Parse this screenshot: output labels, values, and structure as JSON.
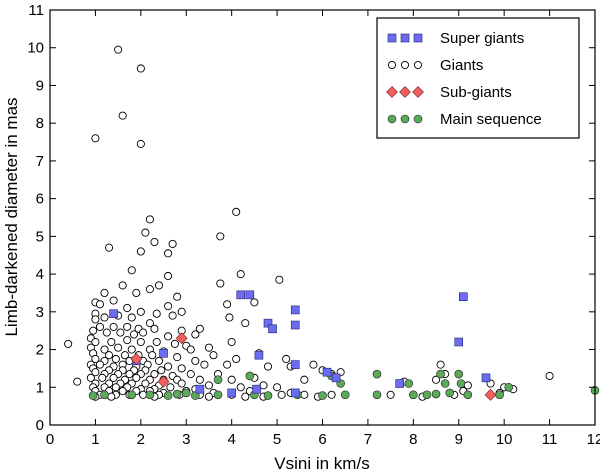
{
  "chart_data": {
    "type": "scatter",
    "title": "",
    "xlabel": "Vsini in km/s",
    "ylabel": "Limb-darkened diameter in mas",
    "xlim": [
      0,
      12
    ],
    "ylim": [
      0,
      11
    ],
    "xticks": [
      "0",
      "1",
      "2",
      "3",
      "4",
      "5",
      "6",
      "7",
      "8",
      "9",
      "10",
      "11",
      "12"
    ],
    "yticks": [
      "0",
      "1",
      "2",
      "3",
      "4",
      "5",
      "6",
      "7",
      "8",
      "9",
      "10",
      "11"
    ],
    "grid": false,
    "legend_position": "top-right",
    "series": [
      {
        "name": "Giants",
        "marker": "circle-open",
        "color": "#000000",
        "points": [
          [
            1.5,
            9.95
          ],
          [
            2.0,
            9.45
          ],
          [
            1.6,
            8.2
          ],
          [
            1.0,
            7.6
          ],
          [
            2.0,
            7.45
          ],
          [
            2.2,
            5.45
          ],
          [
            4.1,
            5.65
          ],
          [
            2.1,
            5.1
          ],
          [
            3.75,
            5.0
          ],
          [
            2.3,
            4.85
          ],
          [
            2.7,
            4.8
          ],
          [
            1.3,
            4.7
          ],
          [
            2.0,
            4.6
          ],
          [
            2.6,
            4.55
          ],
          [
            1.8,
            4.1
          ],
          [
            4.2,
            4.0
          ],
          [
            2.6,
            3.95
          ],
          [
            5.05,
            3.85
          ],
          [
            2.4,
            3.7
          ],
          [
            1.6,
            3.7
          ],
          [
            3.75,
            3.75
          ],
          [
            2.2,
            3.6
          ],
          [
            1.9,
            3.5
          ],
          [
            1.2,
            3.5
          ],
          [
            2.8,
            3.4
          ],
          [
            1.4,
            3.3
          ],
          [
            1.0,
            3.25
          ],
          [
            1.1,
            3.2
          ],
          [
            2.6,
            3.15
          ],
          [
            4.5,
            3.25
          ],
          [
            3.9,
            3.2
          ],
          [
            1.7,
            3.1
          ],
          [
            2.0,
            3.0
          ],
          [
            2.35,
            2.95
          ],
          [
            2.9,
            3.0
          ],
          [
            1.0,
            2.95
          ],
          [
            1.5,
            2.9
          ],
          [
            2.7,
            2.9
          ],
          [
            1.2,
            2.85
          ],
          [
            1.8,
            2.85
          ],
          [
            3.95,
            2.85
          ],
          [
            1.0,
            2.8
          ],
          [
            2.2,
            2.7
          ],
          [
            4.3,
            2.7
          ],
          [
            1.1,
            2.6
          ],
          [
            1.4,
            2.6
          ],
          [
            1.7,
            2.6
          ],
          [
            1.95,
            2.55
          ],
          [
            2.3,
            2.55
          ],
          [
            2.9,
            2.5
          ],
          [
            3.3,
            2.55
          ],
          [
            0.95,
            2.5
          ],
          [
            1.25,
            2.45
          ],
          [
            1.55,
            2.45
          ],
          [
            1.85,
            2.4
          ],
          [
            2.05,
            2.45
          ],
          [
            2.6,
            2.35
          ],
          [
            3.2,
            2.4
          ],
          [
            0.9,
            2.3
          ],
          [
            1.0,
            2.2
          ],
          [
            1.35,
            2.2
          ],
          [
            1.7,
            2.25
          ],
          [
            2.0,
            2.2
          ],
          [
            2.35,
            2.2
          ],
          [
            2.75,
            2.15
          ],
          [
            3.0,
            2.1
          ],
          [
            4.0,
            2.2
          ],
          [
            0.4,
            2.15
          ],
          [
            0.9,
            2.05
          ],
          [
            1.2,
            2.0
          ],
          [
            1.5,
            2.05
          ],
          [
            1.8,
            2.0
          ],
          [
            2.2,
            2.0
          ],
          [
            2.5,
            1.95
          ],
          [
            3.1,
            2.0
          ],
          [
            3.5,
            2.05
          ],
          [
            3.6,
            1.85
          ],
          [
            0.95,
            1.9
          ],
          [
            1.3,
            1.85
          ],
          [
            1.65,
            1.85
          ],
          [
            1.95,
            1.85
          ],
          [
            2.25,
            1.85
          ],
          [
            2.8,
            1.8
          ],
          [
            4.6,
            1.9
          ],
          [
            1.0,
            1.75
          ],
          [
            1.2,
            1.7
          ],
          [
            1.45,
            1.75
          ],
          [
            1.75,
            1.7
          ],
          [
            2.05,
            1.7
          ],
          [
            2.4,
            1.7
          ],
          [
            3.2,
            1.7
          ],
          [
            4.1,
            1.75
          ],
          [
            5.2,
            1.75
          ],
          [
            0.9,
            1.6
          ],
          [
            1.1,
            1.6
          ],
          [
            1.4,
            1.55
          ],
          [
            1.6,
            1.6
          ],
          [
            1.9,
            1.55
          ],
          [
            2.15,
            1.6
          ],
          [
            2.6,
            1.55
          ],
          [
            3.4,
            1.6
          ],
          [
            3.9,
            1.6
          ],
          [
            5.8,
            1.6
          ],
          [
            0.95,
            1.5
          ],
          [
            1.3,
            1.45
          ],
          [
            1.6,
            1.45
          ],
          [
            1.85,
            1.45
          ],
          [
            2.1,
            1.45
          ],
          [
            2.45,
            1.45
          ],
          [
            2.9,
            1.5
          ],
          [
            4.8,
            1.55
          ],
          [
            5.3,
            1.55
          ],
          [
            6.0,
            1.45
          ],
          [
            6.4,
            1.4
          ],
          [
            8.6,
            1.6
          ],
          [
            1.0,
            1.4
          ],
          [
            1.2,
            1.35
          ],
          [
            1.5,
            1.35
          ],
          [
            1.75,
            1.35
          ],
          [
            2.0,
            1.35
          ],
          [
            2.3,
            1.35
          ],
          [
            2.7,
            1.3
          ],
          [
            3.1,
            1.35
          ],
          [
            3.7,
            1.35
          ],
          [
            4.4,
            1.3
          ],
          [
            6.2,
            1.35
          ],
          [
            8.7,
            1.35
          ],
          [
            11.0,
            1.3
          ],
          [
            0.9,
            1.25
          ],
          [
            1.15,
            1.25
          ],
          [
            1.4,
            1.25
          ],
          [
            1.65,
            1.2
          ],
          [
            1.9,
            1.25
          ],
          [
            2.2,
            1.2
          ],
          [
            2.5,
            1.2
          ],
          [
            2.8,
            1.2
          ],
          [
            3.3,
            1.2
          ],
          [
            4.0,
            1.2
          ],
          [
            4.5,
            1.25
          ],
          [
            5.6,
            1.2
          ],
          [
            8.5,
            1.2
          ],
          [
            0.6,
            1.15
          ],
          [
            1.0,
            1.1
          ],
          [
            1.3,
            1.1
          ],
          [
            1.55,
            1.1
          ],
          [
            1.8,
            1.1
          ],
          [
            2.1,
            1.1
          ],
          [
            2.4,
            1.05
          ],
          [
            2.9,
            1.1
          ],
          [
            3.5,
            1.05
          ],
          [
            4.7,
            1.05
          ],
          [
            7.8,
            1.15
          ],
          [
            9.7,
            1.1
          ],
          [
            0.95,
            1.0
          ],
          [
            1.2,
            1.0
          ],
          [
            1.45,
            1.0
          ],
          [
            1.7,
            1.0
          ],
          [
            2.0,
            0.95
          ],
          [
            2.3,
            0.95
          ],
          [
            2.65,
            1.0
          ],
          [
            3.2,
            0.95
          ],
          [
            4.2,
            1.0
          ],
          [
            5.0,
            1.0
          ],
          [
            9.2,
            1.05
          ],
          [
            10.0,
            1.0
          ],
          [
            10.2,
            0.95
          ],
          [
            1.0,
            0.9
          ],
          [
            1.3,
            0.9
          ],
          [
            1.6,
            0.9
          ],
          [
            1.9,
            0.9
          ],
          [
            2.2,
            0.9
          ],
          [
            2.5,
            0.85
          ],
          [
            3.0,
            0.9
          ],
          [
            3.6,
            0.85
          ],
          [
            4.4,
            0.9
          ],
          [
            5.3,
            0.85
          ],
          [
            9.1,
            0.9
          ],
          [
            1.1,
            0.8
          ],
          [
            1.45,
            0.8
          ],
          [
            1.75,
            0.8
          ],
          [
            2.05,
            0.8
          ],
          [
            2.4,
            0.8
          ],
          [
            2.85,
            0.8
          ],
          [
            3.3,
            0.8
          ],
          [
            4.0,
            0.8
          ],
          [
            4.3,
            0.75
          ],
          [
            4.7,
            0.75
          ],
          [
            5.1,
            0.8
          ],
          [
            5.6,
            0.8
          ],
          [
            6.2,
            0.8
          ],
          [
            7.5,
            0.8
          ],
          [
            8.2,
            0.75
          ],
          [
            8.9,
            0.8
          ],
          [
            9.9,
            0.85
          ],
          [
            1.0,
            0.75
          ],
          [
            1.35,
            0.75
          ],
          [
            2.3,
            0.75
          ],
          [
            3.5,
            0.75
          ],
          [
            5.9,
            0.75
          ]
        ]
      },
      {
        "name": "Main sequence",
        "marker": "circle-filled",
        "color": "#5aaa5a",
        "points": [
          [
            0.95,
            0.78
          ],
          [
            1.2,
            0.8
          ],
          [
            1.8,
            0.8
          ],
          [
            2.2,
            0.8
          ],
          [
            2.6,
            0.78
          ],
          [
            2.8,
            0.82
          ],
          [
            3.0,
            0.85
          ],
          [
            3.2,
            0.78
          ],
          [
            3.7,
            0.8
          ],
          [
            3.7,
            1.2
          ],
          [
            4.4,
            1.3
          ],
          [
            4.5,
            0.8
          ],
          [
            4.8,
            0.78
          ],
          [
            5.45,
            0.8
          ],
          [
            6.0,
            0.78
          ],
          [
            6.2,
            1.3
          ],
          [
            6.4,
            1.1
          ],
          [
            6.5,
            0.8
          ],
          [
            7.2,
            1.35
          ],
          [
            7.2,
            0.8
          ],
          [
            7.9,
            1.1
          ],
          [
            8.0,
            0.8
          ],
          [
            8.3,
            0.8
          ],
          [
            8.5,
            0.82
          ],
          [
            8.8,
            0.85
          ],
          [
            8.7,
            1.1
          ],
          [
            8.6,
            1.35
          ],
          [
            9.0,
            1.35
          ],
          [
            9.05,
            1.1
          ],
          [
            9.2,
            0.8
          ],
          [
            9.9,
            0.8
          ],
          [
            10.1,
            1.0
          ],
          [
            12.0,
            0.92
          ]
        ]
      },
      {
        "name": "Super giants",
        "marker": "square",
        "color": "#6c6cf0",
        "points": [
          [
            1.4,
            2.95
          ],
          [
            2.5,
            1.9
          ],
          [
            1.9,
            1.7
          ],
          [
            3.3,
            0.95
          ],
          [
            4.0,
            0.85
          ],
          [
            4.2,
            3.45
          ],
          [
            4.4,
            3.45
          ],
          [
            4.8,
            2.7
          ],
          [
            4.9,
            2.55
          ],
          [
            5.4,
            3.05
          ],
          [
            5.4,
            2.65
          ],
          [
            4.6,
            1.85
          ],
          [
            5.4,
            1.6
          ],
          [
            5.4,
            0.85
          ],
          [
            6.1,
            1.4
          ],
          [
            6.3,
            1.25
          ],
          [
            7.7,
            1.1
          ],
          [
            9.0,
            2.2
          ],
          [
            9.1,
            3.4
          ],
          [
            9.6,
            1.25
          ],
          [
            4.55,
            0.95
          ]
        ]
      },
      {
        "name": "Sub-giants",
        "marker": "diamond",
        "color": "#f06060",
        "points": [
          [
            1.9,
            1.75
          ],
          [
            2.5,
            1.15
          ],
          [
            2.9,
            2.3
          ],
          [
            9.7,
            0.8
          ]
        ]
      }
    ],
    "legend": [
      {
        "label": "Super giants",
        "marker": "square"
      },
      {
        "label": "Giants",
        "marker": "circle-open"
      },
      {
        "label": "Sub-giants",
        "marker": "diamond"
      },
      {
        "label": "Main sequence",
        "marker": "circle-filled"
      }
    ]
  }
}
